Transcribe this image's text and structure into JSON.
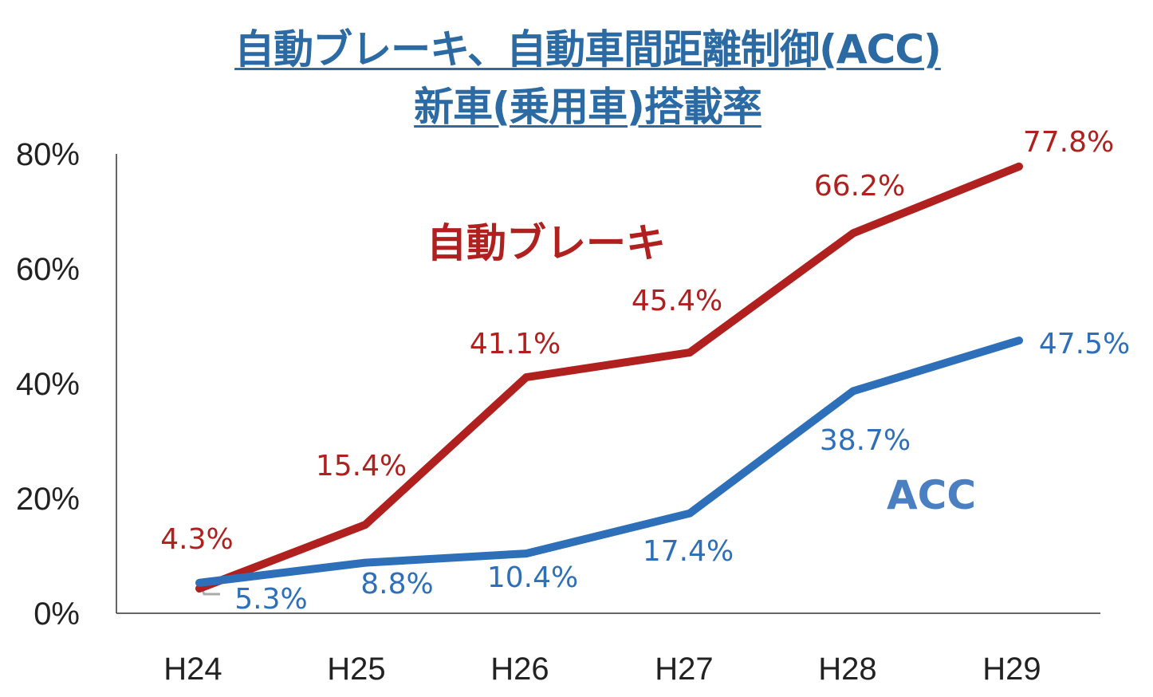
{
  "chart_data": {
    "type": "line",
    "title": [
      "自動ブレーキ、自動車間距離制御(ACC)",
      "新車(乗用車)搭載率"
    ],
    "xlabel": "",
    "ylabel": "",
    "categories": [
      "H24",
      "H25",
      "H26",
      "H27",
      "H28",
      "H29"
    ],
    "ylim": [
      0,
      80
    ],
    "yticks": [
      "0%",
      "20%",
      "40%",
      "60%",
      "80%"
    ],
    "grid": false,
    "series": [
      {
        "name": "自動ブレーキ",
        "color": "#b0201e",
        "values": [
          4.3,
          15.4,
          41.1,
          45.4,
          66.2,
          77.8
        ],
        "labels": [
          "4.3%",
          "15.4%",
          "41.1%",
          "45.4%",
          "66.2%",
          "77.8%"
        ]
      },
      {
        "name": "ACC",
        "color": "#2e6fba",
        "name_color": "#4a7fc1",
        "values": [
          5.3,
          8.8,
          10.4,
          17.4,
          38.7,
          47.5
        ],
        "labels": [
          "5.3%",
          "8.8%",
          "10.4%",
          "17.4%",
          "38.7%",
          "47.5%"
        ]
      }
    ]
  }
}
